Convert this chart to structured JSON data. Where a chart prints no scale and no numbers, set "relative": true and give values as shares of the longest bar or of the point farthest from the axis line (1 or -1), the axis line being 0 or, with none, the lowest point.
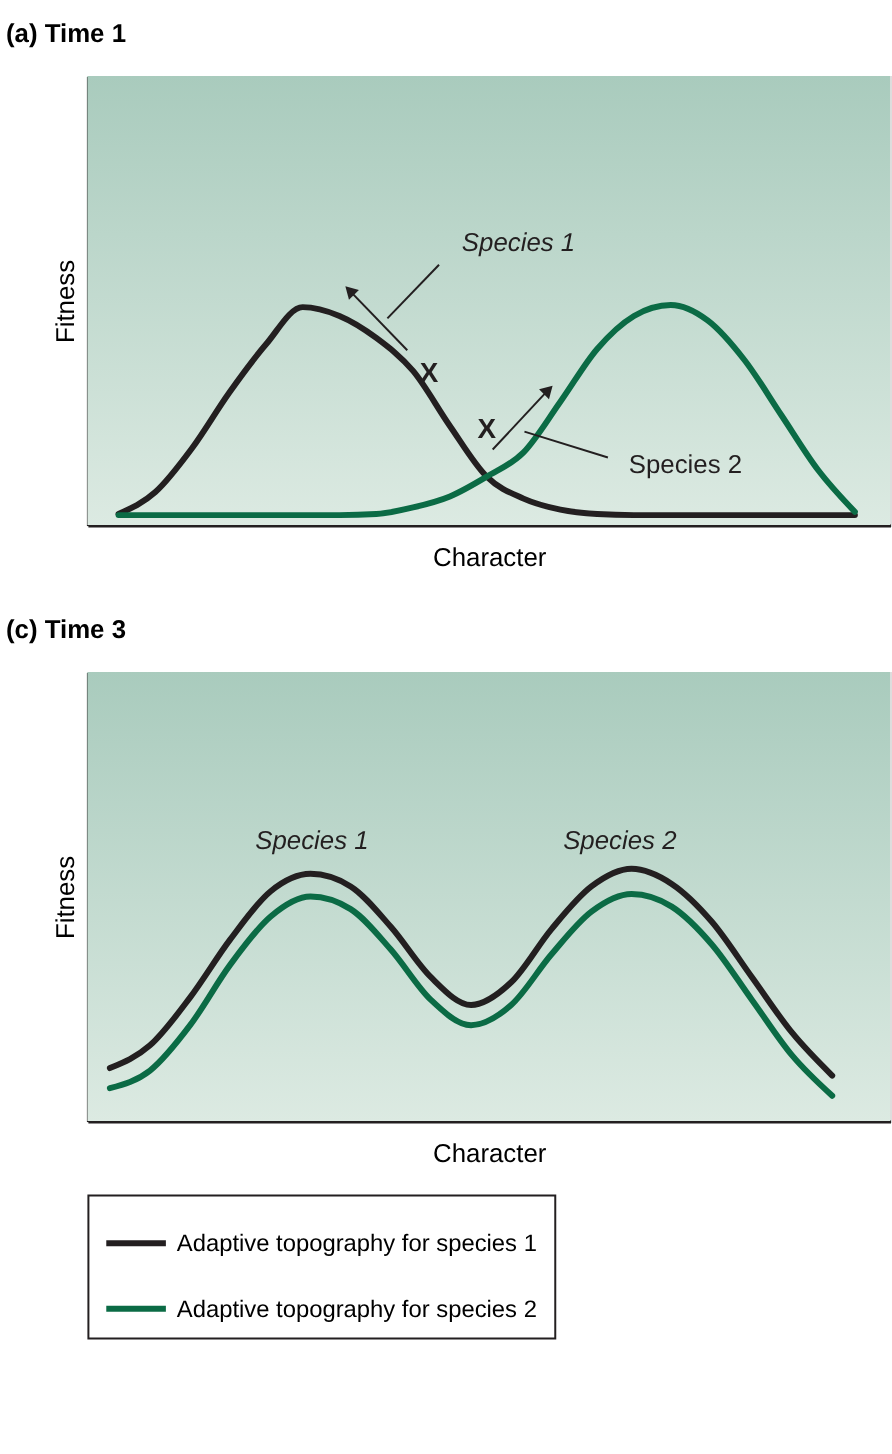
{
  "chart_data": [
    {
      "type": "line",
      "title": "(a) Time 1",
      "xlabel": "Character",
      "ylabel": "Fitness",
      "relative": true,
      "tick_labels": false,
      "categories": [
        null,
        null,
        null,
        null,
        null,
        null,
        null,
        null,
        null,
        null,
        null,
        null,
        null,
        null,
        null,
        null,
        null,
        null,
        null,
        null,
        null
      ],
      "series": [
        {
          "color": "#231f20",
          "values": [
            0.05,
            0.15,
            0.35,
            0.6,
            0.82,
            0.99,
            0.95,
            0.85,
            0.7,
            0.45,
            0.22,
            0.12,
            0.07,
            0.05,
            0.045,
            0.045,
            0.045,
            0.045,
            0.045,
            0.045,
            0.045
          ]
        },
        {
          "color": "#0b6b45",
          "values": [
            0.045,
            0.045,
            0.045,
            0.045,
            0.045,
            0.045,
            0.045,
            0.05,
            0.08,
            0.13,
            0.22,
            0.33,
            0.56,
            0.8,
            0.95,
            1,
            0.93,
            0.75,
            0.5,
            0.25,
            0.06
          ]
        }
      ],
      "annotations": [
        "Species 1",
        "X",
        "X",
        "Species 2"
      ]
    },
    {
      "type": "line",
      "title": "(c) Time 3",
      "xlabel": "Character",
      "ylabel": "Fitness",
      "relative": true,
      "tick_labels": false,
      "legend": "bottom",
      "categories": [
        null,
        null,
        null,
        null,
        null,
        null,
        null,
        null,
        null,
        null,
        null,
        null,
        null,
        null,
        null,
        null,
        null,
        null,
        null
      ],
      "series": [
        {
          "name": "Adaptive topography for species 1",
          "color": "#231f20",
          "values": [
            0.21,
            0.3,
            0.49,
            0.72,
            0.91,
            0.98,
            0.93,
            0.77,
            0.57,
            0.46,
            0.55,
            0.76,
            0.93,
            1,
            0.94,
            0.79,
            0.57,
            0.35,
            0.18
          ]
        },
        {
          "name": "Adaptive topography for species 2",
          "color": "#0b6b45",
          "values": [
            0.13,
            0.2,
            0.38,
            0.62,
            0.81,
            0.89,
            0.84,
            0.68,
            0.48,
            0.38,
            0.46,
            0.66,
            0.83,
            0.9,
            0.85,
            0.7,
            0.48,
            0.26,
            0.1
          ]
        }
      ],
      "annotations": [
        "Species 1",
        "Species 2"
      ]
    }
  ]
}
